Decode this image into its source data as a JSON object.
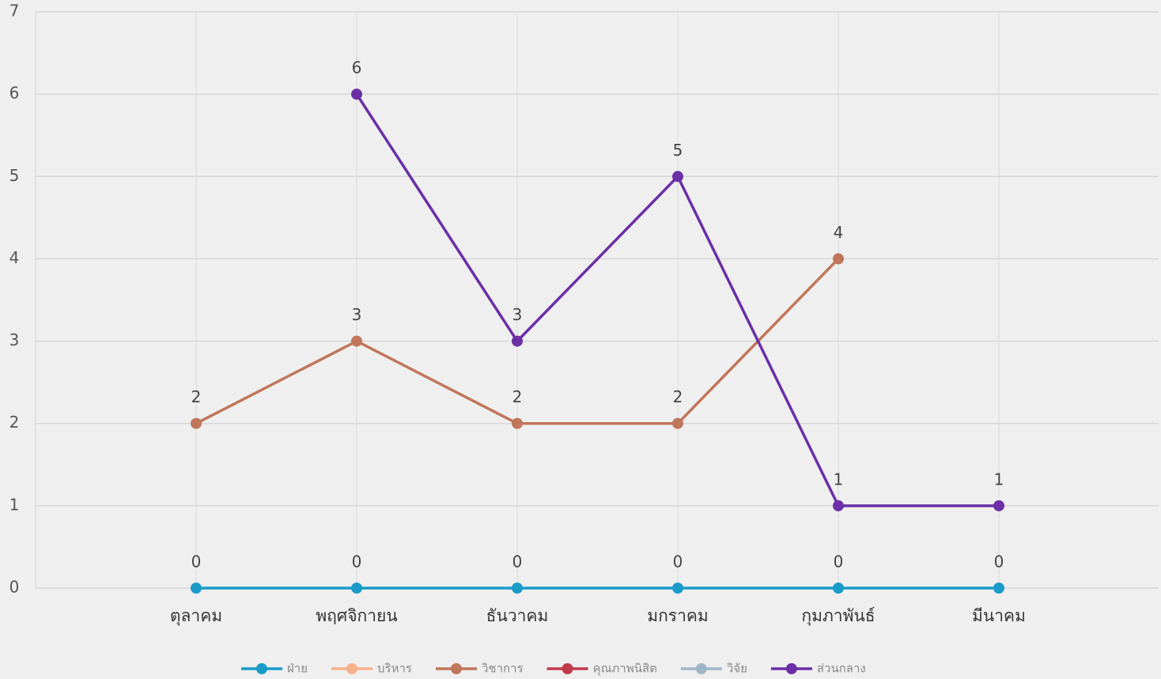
{
  "chart_data": {
    "type": "line",
    "categories": [
      "ตุลาคม",
      "พฤศจิกายน",
      "ธันวาคม",
      "มกราคม",
      "กุมภาพันธ์",
      "มีนาคม"
    ],
    "series": [
      {
        "name": "ฝ่าย",
        "color": "#1a9bc8",
        "values": [
          0,
          0,
          0,
          0,
          0,
          0
        ]
      },
      {
        "name": "บริหาร",
        "color": "#f7b08c",
        "values": [
          null,
          null,
          null,
          null,
          null,
          null
        ]
      },
      {
        "name": "วิชาการ",
        "color": "#c0765a",
        "values": [
          2,
          3,
          2,
          2,
          4,
          null
        ]
      },
      {
        "name": "คุณภาพนิสิต",
        "color": "#c03a4a",
        "values": [
          null,
          null,
          null,
          null,
          null,
          null
        ]
      },
      {
        "name": "วิจัย",
        "color": "#9fb6c6",
        "values": [
          null,
          null,
          null,
          null,
          null,
          null
        ]
      },
      {
        "name": "ส่วนกลาง",
        "color": "#6b2fa6",
        "values": [
          null,
          6,
          3,
          5,
          1,
          1
        ]
      }
    ],
    "ylim": [
      0,
      7
    ],
    "yticks": [
      0,
      1,
      2,
      3,
      4,
      5,
      6,
      7
    ],
    "grid": true,
    "legend": "bottom"
  }
}
